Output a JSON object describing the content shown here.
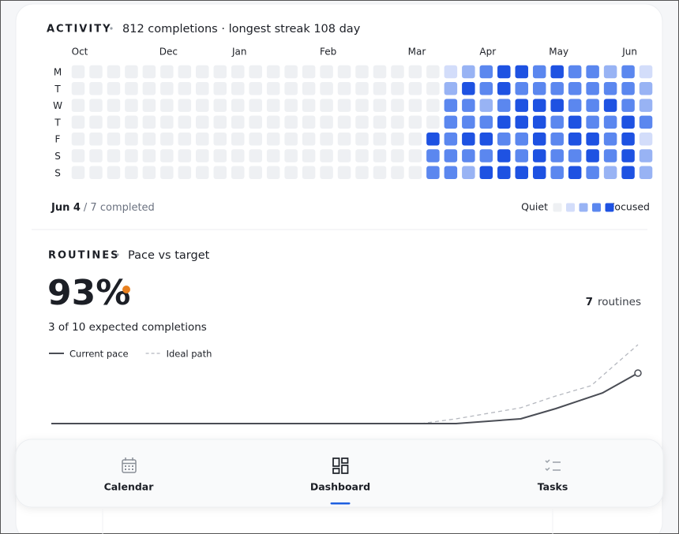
{
  "activity": {
    "title": "ACTIVITY",
    "subtitle": "812 completions · longest streak 108 day",
    "month_labels": [
      "Oct",
      null,
      null,
      null,
      null,
      "Dec",
      null,
      null,
      null,
      "Jan",
      null,
      null,
      null,
      null,
      "Feb",
      null,
      null,
      null,
      null,
      "Mar",
      null,
      null,
      null,
      "Apr",
      null,
      null,
      null,
      "May",
      null,
      null,
      null,
      "Jun",
      null
    ],
    "day_labels": [
      "M",
      "T",
      "W",
      "T",
      "F",
      "S",
      "S"
    ],
    "level_colors": [
      "#eef0f3",
      "#d3ddfa",
      "#98b3f4",
      "#5b87ef",
      "#1e52e2"
    ],
    "levels": [
      [
        0,
        0,
        0,
        0,
        0,
        0,
        0,
        0,
        0,
        0,
        0,
        0,
        0,
        0,
        0,
        0,
        0,
        0,
        0,
        0,
        0,
        1,
        2,
        3,
        4,
        4,
        3,
        4,
        3,
        3,
        2,
        3,
        1
      ],
      [
        0,
        0,
        0,
        0,
        0,
        0,
        0,
        0,
        0,
        0,
        0,
        0,
        0,
        0,
        0,
        0,
        0,
        0,
        0,
        0,
        0,
        2,
        4,
        3,
        4,
        3,
        3,
        3,
        3,
        3,
        3,
        3,
        2
      ],
      [
        0,
        0,
        0,
        0,
        0,
        0,
        0,
        0,
        0,
        0,
        0,
        0,
        0,
        0,
        0,
        0,
        0,
        0,
        0,
        0,
        0,
        3,
        3,
        2,
        3,
        4,
        4,
        4,
        3,
        3,
        4,
        3,
        2
      ],
      [
        0,
        0,
        0,
        0,
        0,
        0,
        0,
        0,
        0,
        0,
        0,
        0,
        0,
        0,
        0,
        0,
        0,
        0,
        0,
        0,
        0,
        3,
        3,
        3,
        4,
        4,
        4,
        3,
        4,
        3,
        3,
        4,
        3
      ],
      [
        0,
        0,
        0,
        0,
        0,
        0,
        0,
        0,
        0,
        0,
        0,
        0,
        0,
        0,
        0,
        0,
        0,
        0,
        0,
        0,
        4,
        3,
        4,
        4,
        3,
        3,
        4,
        3,
        4,
        4,
        3,
        4,
        1
      ],
      [
        0,
        0,
        0,
        0,
        0,
        0,
        0,
        0,
        0,
        0,
        0,
        0,
        0,
        0,
        0,
        0,
        0,
        0,
        0,
        0,
        3,
        3,
        3,
        3,
        4,
        3,
        4,
        3,
        3,
        4,
        3,
        4,
        2
      ],
      [
        0,
        0,
        0,
        0,
        0,
        0,
        0,
        0,
        0,
        0,
        0,
        0,
        0,
        0,
        0,
        0,
        0,
        0,
        0,
        0,
        3,
        3,
        2,
        4,
        4,
        4,
        4,
        3,
        4,
        3,
        2,
        4,
        2
      ]
    ],
    "selected_date": "Jun 4",
    "selected_detail": "/ 7 completed",
    "legend_low": "Quiet",
    "legend_high": "Focused",
    "legend_levels": [
      0,
      1,
      2,
      3,
      4
    ]
  },
  "routines": {
    "title": "ROUTINES",
    "subtitle": "Pace vs target",
    "percent": "93%",
    "expected": "3 of 10 expected completions",
    "routine_count": "7",
    "routine_label": "routines",
    "chart_data": {
      "type": "line",
      "xlim": [
        0,
        100
      ],
      "ylim": [
        0,
        10
      ],
      "series": [
        {
          "name": "Current pace",
          "color": "#4a4d55",
          "dashed": false,
          "end_marker": true,
          "x": [
            0,
            69,
            80,
            86,
            94,
            100
          ],
          "values": [
            0,
            0,
            0.6,
            1.9,
            3.9,
            6.4
          ]
        },
        {
          "name": "Ideal path",
          "color": "#b5b8bf",
          "dashed": true,
          "end_marker": false,
          "x": [
            63,
            69,
            80,
            86,
            92,
            100
          ],
          "values": [
            0,
            0.6,
            2.0,
            3.5,
            4.8,
            10.0
          ]
        }
      ]
    }
  },
  "nav": {
    "items": [
      "Calendar",
      "Dashboard",
      "Tasks"
    ],
    "active": "Dashboard"
  }
}
